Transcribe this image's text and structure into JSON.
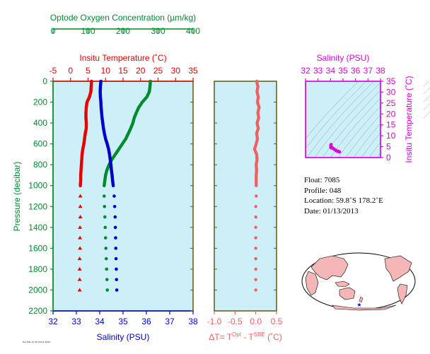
{
  "colors": {
    "oxygen": "#008a2e",
    "temperature": "#e60000",
    "salinity": "#0000cc",
    "delta": "#f06060",
    "ts_panel": "#dd00dd",
    "panel_bg": "#cdeff8",
    "panel_border": "#5c5a14",
    "land": "#f4b6b6"
  },
  "float_info": {
    "float": "Float:  7085",
    "profile": "Profile:  048",
    "location": "Location:  59.8˚S  178.2˚E",
    "date": "Date:  01/13/2013"
  },
  "footer_text": "Tue Feb 12 15:24:11 2013",
  "chart_data": [
    {
      "type": "scatter",
      "title": "",
      "ylabel": "Pressure (decibar)",
      "ylim": [
        2200,
        0
      ],
      "yticks": [
        "0",
        "200",
        "400",
        "600",
        "800",
        "1000",
        "1200",
        "1400",
        "1600",
        "1800",
        "2000",
        "2200"
      ],
      "axes": {
        "oxygen": {
          "label": "Optode Oxygen Concentration (µm/kg)",
          "range": [
            0,
            400
          ],
          "ticks": [
            "0",
            "100",
            "200",
            "300",
            "400"
          ]
        },
        "temperature": {
          "label": "Insitu Temperature (˚C)",
          "range": [
            -5,
            35
          ],
          "ticks": [
            "-5",
            "0",
            "5",
            "10",
            "15",
            "20",
            "25",
            "30",
            "35"
          ]
        },
        "salinity": {
          "label": "Salinity (PSU)",
          "range": [
            32,
            38
          ],
          "ticks": [
            "32",
            "33",
            "34",
            "35",
            "36",
            "37",
            "38"
          ]
        }
      },
      "series": [
        {
          "name": "temperature",
          "x": [
            6.0,
            5.9,
            5.8,
            5.4,
            4.7,
            4.5,
            4.4,
            4.4,
            4.5,
            4.5,
            4.2,
            4.0,
            3.8,
            3.5,
            3.3,
            3.2,
            3.1,
            3.0,
            2.9,
            2.9,
            2.8,
            2.8,
            2.8,
            2.8,
            2.7,
            2.7,
            2.7,
            2.6,
            2.6,
            2.6,
            2.6
          ],
          "y": [
            0,
            50,
            100,
            150,
            200,
            250,
            300,
            350,
            400,
            450,
            500,
            550,
            600,
            650,
            700,
            750,
            800,
            850,
            900,
            950,
            1000,
            1100,
            1200,
            1300,
            1400,
            1500,
            1600,
            1700,
            1800,
            1900,
            2000
          ]
        },
        {
          "name": "salinity",
          "x": [
            34.05,
            34.03,
            34.02,
            34.03,
            34.05,
            34.06,
            34.08,
            34.1,
            34.13,
            34.16,
            34.2,
            34.25,
            34.32,
            34.38,
            34.42,
            34.45,
            34.48,
            34.5,
            34.53,
            34.55,
            34.58,
            34.62,
            34.64,
            34.66,
            34.67,
            34.68,
            34.69,
            34.7,
            34.71,
            34.72,
            34.73
          ],
          "y": [
            0,
            50,
            100,
            150,
            200,
            250,
            300,
            350,
            400,
            450,
            500,
            550,
            600,
            650,
            700,
            750,
            800,
            850,
            900,
            950,
            1000,
            1100,
            1200,
            1300,
            1400,
            1500,
            1600,
            1700,
            1800,
            1900,
            2000
          ]
        },
        {
          "name": "oxygen",
          "x": [
            278,
            277,
            275,
            268,
            255,
            245,
            238,
            232,
            228,
            222,
            215,
            208,
            198,
            188,
            178,
            168,
            160,
            154,
            150,
            148,
            146,
            146,
            147,
            148,
            149,
            150,
            151,
            152,
            153,
            154,
            155
          ],
          "y": [
            0,
            50,
            100,
            150,
            200,
            250,
            300,
            350,
            400,
            450,
            500,
            550,
            600,
            650,
            700,
            750,
            800,
            850,
            900,
            950,
            1000,
            1100,
            1200,
            1300,
            1400,
            1500,
            1600,
            1700,
            1800,
            1900,
            2000
          ]
        }
      ]
    },
    {
      "type": "scatter",
      "xlabel": "ΔT= T",
      "xlabel_sup1": "Opt",
      "xlabel_mid": " - T",
      "xlabel_sup2": "SBE",
      "xlabel_end": " (˚C)",
      "xlim": [
        -1.0,
        0.5
      ],
      "xticks": [
        "-1.0",
        "-0.5",
        "0.0",
        "0.5"
      ],
      "ylim": [
        2200,
        0
      ],
      "series": [
        {
          "name": "delta_t",
          "x": [
            0.02,
            0.05,
            0.03,
            0.06,
            0.04,
            0.08,
            0.05,
            0.07,
            0.03,
            0.06,
            0.02,
            0.04,
            0.01,
            -0.03,
            0.02,
            0.03,
            0.01,
            0.02,
            0.01,
            0.01,
            0.01,
            0.01,
            0.0,
            0.0,
            0.0,
            0.0,
            0.0,
            0.0,
            0.0,
            0.0,
            0.0
          ],
          "y": [
            0,
            50,
            100,
            150,
            200,
            250,
            300,
            350,
            400,
            450,
            500,
            550,
            600,
            650,
            700,
            750,
            800,
            850,
            900,
            950,
            1000,
            1100,
            1200,
            1300,
            1400,
            1500,
            1600,
            1700,
            1800,
            1900,
            2000
          ]
        }
      ]
    },
    {
      "type": "scatter",
      "xlabel": "Salinity (PSU)",
      "ylabel": "Insitu Temperature (˚C)",
      "xlim": [
        32,
        38
      ],
      "xticks": [
        "32",
        "33",
        "34",
        "35",
        "36",
        "37",
        "38"
      ],
      "ylim": [
        0,
        35
      ],
      "yticks": [
        "0",
        "5",
        "10",
        "15",
        "20",
        "25",
        "30",
        "35"
      ],
      "series": [
        {
          "name": "ts",
          "x": [
            34.05,
            34.03,
            34.02,
            34.05,
            34.1,
            34.16,
            34.25,
            34.38,
            34.48,
            34.55,
            34.58,
            34.64,
            34.68,
            34.71,
            34.73
          ],
          "y": [
            6.0,
            5.8,
            4.7,
            4.4,
            4.5,
            4.5,
            4.0,
            3.5,
            3.1,
            2.9,
            2.8,
            2.8,
            2.7,
            2.6,
            2.6
          ]
        }
      ]
    }
  ]
}
